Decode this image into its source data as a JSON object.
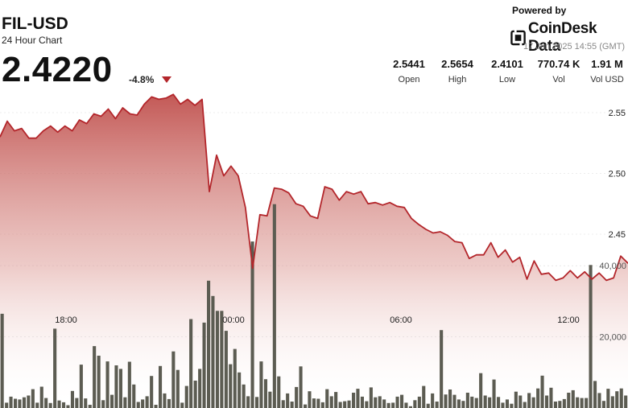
{
  "header": {
    "symbol": "FIL-USD",
    "subtitle": "24 Hour Chart",
    "price": "2.4220",
    "change": "-4.8%"
  },
  "branding": {
    "powered_by": "Powered by",
    "logo_text": "CoinDesk Data",
    "timestamp": "17 Jun 2025 14:55 (GMT)"
  },
  "stats": [
    {
      "value": "2.5441",
      "label": "Open"
    },
    {
      "value": "2.5654",
      "label": "High"
    },
    {
      "value": "2.4101",
      "label": "Low"
    },
    {
      "value": "770.74 K",
      "label": "Vol"
    },
    {
      "value": "1.91 M",
      "label": "Vol USD"
    }
  ],
  "colors": {
    "line": "#b3262b",
    "area_top": "#c0504d",
    "area_bottom": "#ffffff",
    "volume_bar": "#5c5c52",
    "down_arrow": "#b3262b"
  },
  "chart_data": {
    "type": "area",
    "x_ticks": [
      "18:00",
      "00:00",
      "06:00",
      "12:00"
    ],
    "y_ticks": [
      "2.55",
      "2.50",
      "2.45"
    ],
    "ylim": [
      2.405,
      2.575
    ],
    "volume_ticks": [
      "40,000",
      "20,000"
    ],
    "volume_ylim": [
      0,
      47000
    ],
    "price": [
      2.53,
      2.543,
      2.535,
      2.537,
      2.529,
      2.529,
      2.535,
      2.539,
      2.534,
      2.539,
      2.535,
      2.544,
      2.541,
      2.549,
      2.547,
      2.553,
      2.545,
      2.554,
      2.549,
      2.548,
      2.557,
      2.563,
      2.561,
      2.562,
      2.565,
      2.557,
      2.561,
      2.556,
      2.561,
      2.485,
      2.515,
      2.498,
      2.506,
      2.498,
      2.472,
      2.422,
      2.466,
      2.465,
      2.488,
      2.487,
      2.484,
      2.475,
      2.473,
      2.465,
      2.463,
      2.489,
      2.487,
      2.478,
      2.485,
      2.483,
      2.485,
      2.475,
      2.476,
      2.474,
      2.476,
      2.473,
      2.472,
      2.463,
      2.458,
      2.454,
      2.451,
      2.452,
      2.449,
      2.444,
      2.443,
      2.43,
      2.433,
      2.433,
      2.443,
      2.431,
      2.437,
      2.427,
      2.431,
      2.413,
      2.428,
      2.417,
      2.418,
      2.412,
      2.414,
      2.42,
      2.414,
      2.419,
      2.413,
      2.418,
      2.412,
      2.414,
      2.432,
      2.426
    ],
    "volume": [
      26500,
      1500,
      3200,
      2600,
      2400,
      3000,
      3500,
      5300,
      1500,
      6000,
      2800,
      1400,
      22300,
      2100,
      1600,
      800,
      4800,
      2800,
      12200,
      2700,
      900,
      17400,
      14700,
      2200,
      13100,
      3700,
      12000,
      11000,
      3000,
      13000,
      6600,
      1700,
      2400,
      3300,
      9000,
      900,
      11800,
      4100,
      2500,
      15900,
      10700,
      1500,
      6200,
      25000,
      7700,
      11000,
      24000,
      35800,
      31500,
      27300,
      27300,
      21700,
      12300,
      16600,
      10000,
      6600,
      3300,
      46800,
      3100,
      13100,
      8100,
      4600,
      57300,
      8900,
      2200,
      4100,
      1800,
      5900,
      11700,
      1000,
      4700,
      2700,
      2600,
      1600,
      5300,
      3300,
      4500,
      1700,
      1900,
      2100,
      4300,
      5400,
      3200,
      1900,
      5800,
      3000,
      3300,
      2400,
      1400,
      1500,
      3200,
      3700,
      1500,
      500,
      2200,
      3200,
      6200,
      1200,
      4100,
      1800,
      21900,
      3800,
      5200,
      3700,
      2400,
      2000,
      4300,
      3200,
      2800,
      9800,
      3500,
      3000,
      8000,
      3100,
      1500,
      2400,
      1200,
      4600,
      3500,
      1700,
      4200,
      3000,
      5500,
      9100,
      3500,
      5700,
      1800,
      2000,
      2500,
      4300,
      5000,
      3000,
      2800,
      2800,
      40200,
      7600,
      4200,
      2000,
      5400,
      3300,
      4700,
      5500,
      3500
    ]
  }
}
